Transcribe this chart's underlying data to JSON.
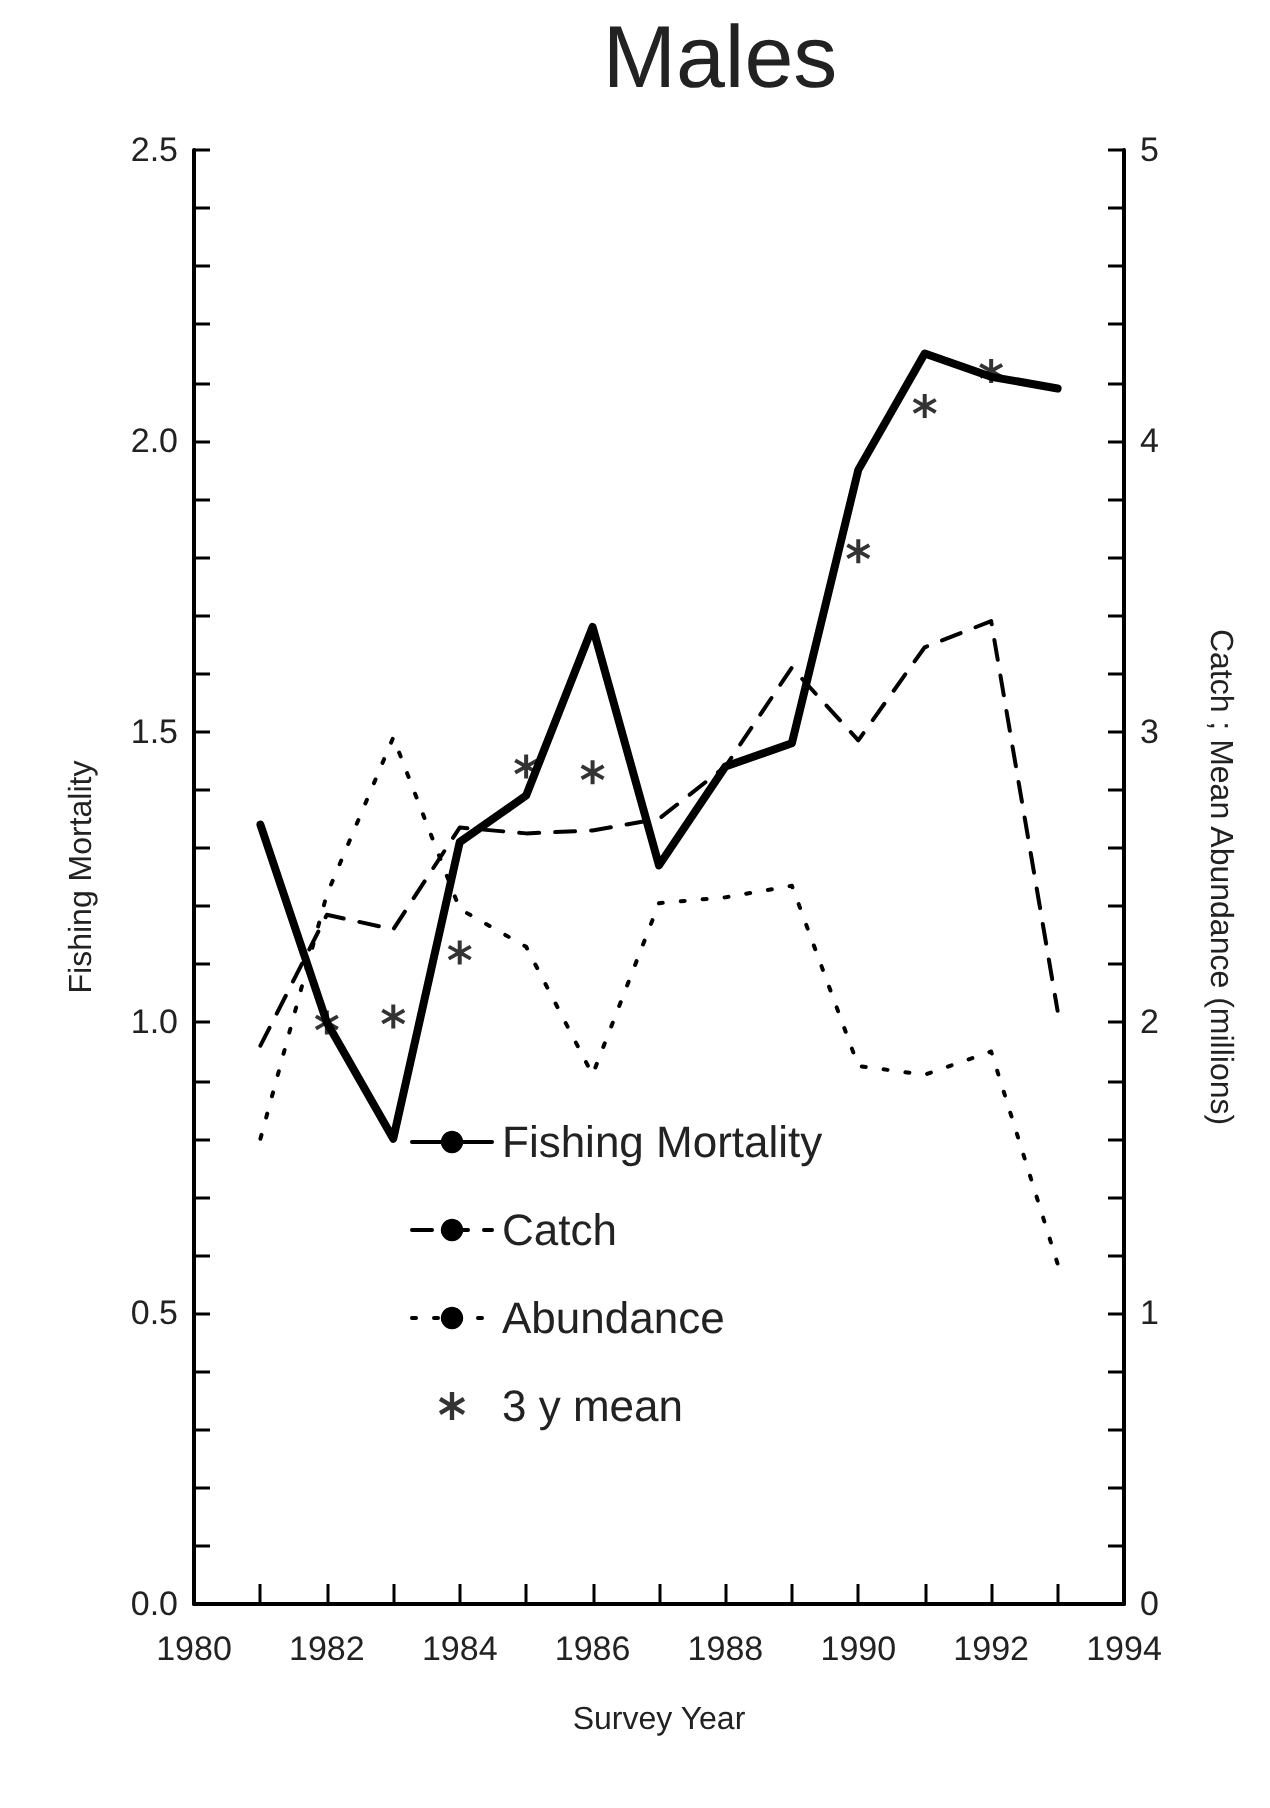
{
  "chart_data": {
    "type": "line",
    "title": "Males",
    "xlabel": "Survey Year",
    "ylabel": "Fishing Mortality",
    "y2label": "Catch ; Mean Abundance (millions)",
    "x": [
      1981,
      1982,
      1983,
      1984,
      1985,
      1986,
      1987,
      1988,
      1989,
      1990,
      1991,
      1992,
      1993
    ],
    "series": [
      {
        "name": "Fishing Mortality",
        "color": "#000000",
        "line_style": "solid",
        "values": [
          1.34,
          1.0,
          0.8,
          1.31,
          1.39,
          1.68,
          1.27,
          1.44,
          1.48,
          1.95,
          2.15,
          2.11,
          2.09
        ]
      },
      {
        "name": "Catch",
        "color": "#000000",
        "line_style": "dashed",
        "axis": "y2",
        "values": [
          1.92,
          2.37,
          2.32,
          2.67,
          2.65,
          2.66,
          2.7,
          2.88,
          3.22,
          2.97,
          3.29,
          3.38,
          2.04
        ]
      },
      {
        "name": "Abundance",
        "color": "#000000",
        "line_style": "dotted",
        "axis": "y2",
        "values": [
          1.6,
          2.44,
          2.98,
          2.39,
          2.26,
          1.82,
          2.41,
          2.43,
          2.47,
          1.85,
          1.82,
          1.9,
          1.17
        ]
      },
      {
        "name": "3 y mean",
        "type": "scatter",
        "marker": "star",
        "color": "#000000",
        "x": [
          1982,
          1983,
          1984,
          1985,
          1986,
          1990,
          1991,
          1992
        ],
        "values": [
          1.0,
          1.01,
          1.12,
          1.44,
          1.43,
          1.81,
          2.06,
          2.12
        ]
      }
    ],
    "marker": "none",
    "grid": false,
    "legend": "bottom",
    "xlim": [
      1980,
      1994
    ],
    "xticks": [
      1980,
      {
        "value": 1981,
        "label": null
      },
      1982,
      {
        "value": 1983,
        "label": null
      },
      1984,
      {
        "value": 1985,
        "label": null
      },
      1986,
      {
        "value": 1987,
        "label": null
      },
      1988,
      {
        "value": 1989,
        "label": null
      },
      1990,
      {
        "value": 1991,
        "label": null
      },
      1992,
      {
        "value": 1993,
        "label": null
      },
      1994
    ],
    "ylim": [
      0,
      2.5
    ],
    "yticks": [
      {
        "value": 0,
        "label": "0.0"
      },
      {
        "value": 0.1,
        "label": null
      },
      {
        "value": 0.2,
        "label": null
      },
      {
        "value": 0.3,
        "label": null
      },
      {
        "value": 0.4,
        "label": null
      },
      0.5,
      {
        "value": 0.6,
        "label": null
      },
      {
        "value": 0.7,
        "label": null
      },
      {
        "value": 0.8,
        "label": null
      },
      {
        "value": 0.9,
        "label": null
      },
      {
        "value": 1,
        "label": "1.0"
      },
      {
        "value": 1.1,
        "label": null
      },
      {
        "value": 1.2,
        "label": null
      },
      {
        "value": 1.3,
        "label": null
      },
      {
        "value": 1.4,
        "label": null
      },
      1.5,
      {
        "value": 1.6,
        "label": null
      },
      {
        "value": 1.7,
        "label": null
      },
      {
        "value": 1.8,
        "label": null
      },
      {
        "value": 1.9,
        "label": null
      },
      {
        "value": 2,
        "label": "2.0"
      },
      {
        "value": 2.1,
        "label": null
      },
      {
        "value": 2.2,
        "label": null
      },
      {
        "value": 2.3,
        "label": null
      },
      {
        "value": 2.4,
        "label": null
      },
      2.5
    ],
    "y2lim": [
      0,
      5
    ],
    "y2ticks": [
      0,
      {
        "value": 0.2,
        "label": null
      },
      {
        "value": 0.4,
        "label": null
      },
      {
        "value": 0.6,
        "label": null
      },
      {
        "value": 0.8,
        "label": null
      },
      1,
      {
        "value": 1.2,
        "label": null
      },
      {
        "value": 1.4,
        "label": null
      },
      {
        "value": 1.6,
        "label": null
      },
      {
        "value": 1.8,
        "label": null
      },
      2,
      {
        "value": 2.2,
        "label": null
      },
      {
        "value": 2.4,
        "label": null
      },
      {
        "value": 2.6,
        "label": null
      },
      {
        "value": 2.8,
        "label": null
      },
      3,
      {
        "value": 3.2,
        "label": null
      },
      {
        "value": 3.4,
        "label": null
      },
      {
        "value": 3.6,
        "label": null
      },
      {
        "value": 3.8,
        "label": null
      },
      4,
      {
        "value": 4.2,
        "label": null
      },
      {
        "value": 4.4,
        "label": null
      },
      {
        "value": 4.6,
        "label": null
      },
      {
        "value": 4.8,
        "label": null
      },
      5
    ]
  }
}
